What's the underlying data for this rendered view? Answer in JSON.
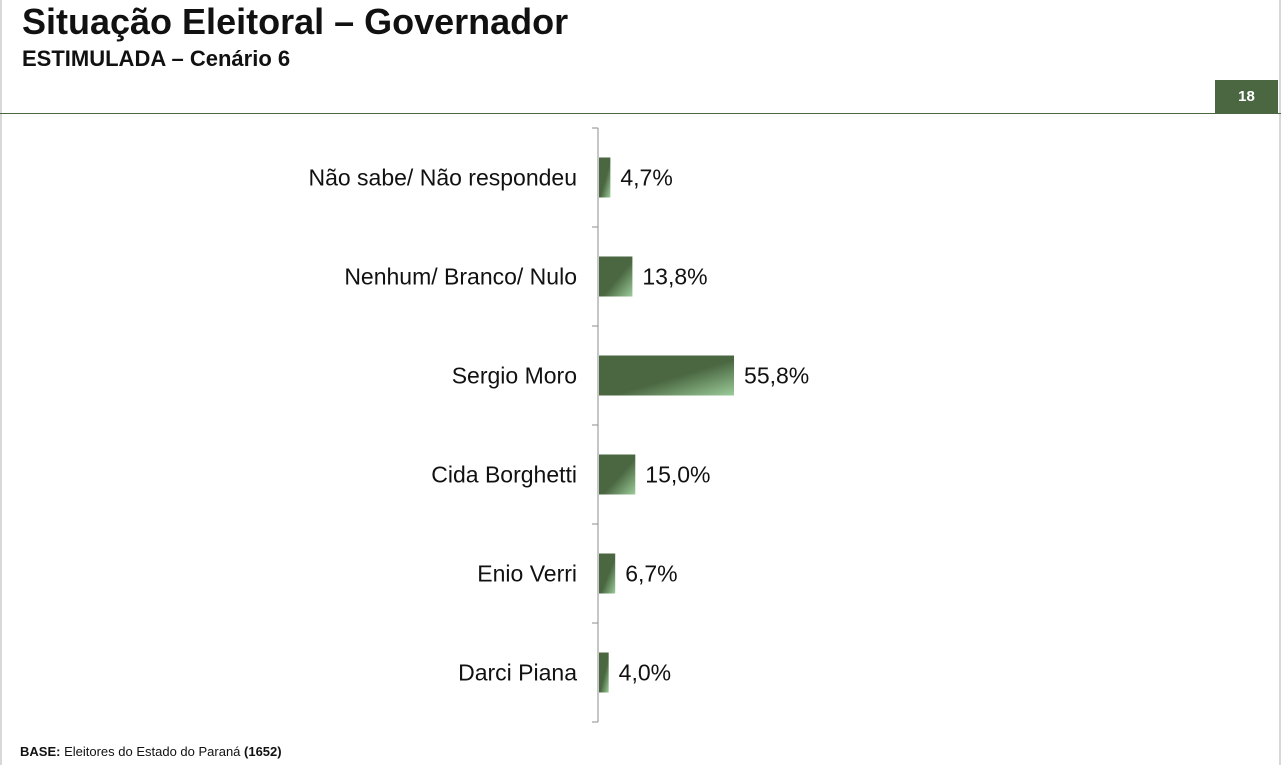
{
  "header": {
    "title": "Situação Eleitoral – Governador",
    "subtitle": "ESTIMULADA – Cenário 6",
    "page_number": "18"
  },
  "footer": {
    "base_label": "BASE:",
    "base_text": " Eleitores do Estado do Paraná ",
    "base_count": "(1652)"
  },
  "colors": {
    "accent": "#4a6741",
    "bar_dark": "#4a6741",
    "bar_light": "#9ccc9a"
  },
  "chart_data": {
    "type": "bar",
    "orientation": "horizontal",
    "categories": [
      "Não sabe/ Não respondeu",
      "Nenhum/ Branco/ Nulo",
      "Sergio Moro",
      "Cida Borghetti",
      "Enio Verri",
      "Darci Piana"
    ],
    "values": [
      4.7,
      13.8,
      55.8,
      15.0,
      6.7,
      4.0
    ],
    "value_labels": [
      "4,7%",
      "13,8%",
      "55,8%",
      "15,0%",
      "6,7%",
      "4,0%"
    ],
    "xlim": [
      0,
      100
    ],
    "grid": false,
    "legend": "none"
  }
}
